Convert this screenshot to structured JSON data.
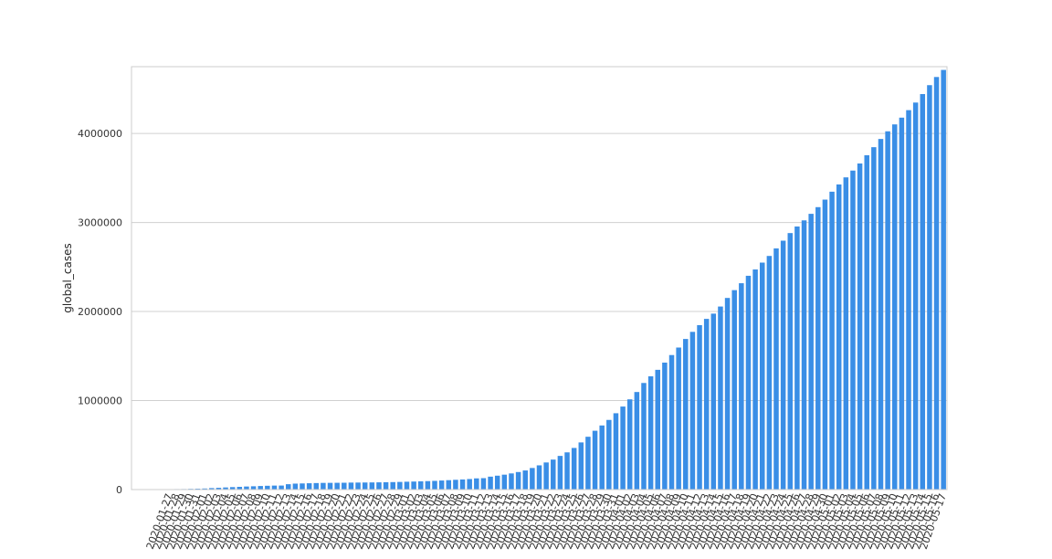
{
  "chart_data": {
    "type": "bar",
    "title": "",
    "xlabel": "",
    "ylabel": "global_cases",
    "ylim": [
      0,
      4750000
    ],
    "yticks": [
      0,
      1000000,
      2000000,
      3000000,
      4000000
    ],
    "ytick_labels": [
      "0",
      "1000000",
      "2000000",
      "3000000",
      "4000000"
    ],
    "grid": "horizontal",
    "bar_color": "#3a8ee6",
    "categories": [
      "2020-01-22",
      "2020-01-23",
      "2020-01-24",
      "2020-01-25",
      "2020-01-26",
      "2020-01-27",
      "2020-01-28",
      "2020-01-29",
      "2020-01-30",
      "2020-01-31",
      "2020-02-01",
      "2020-02-02",
      "2020-02-03",
      "2020-02-04",
      "2020-02-05",
      "2020-02-06",
      "2020-02-07",
      "2020-02-08",
      "2020-02-09",
      "2020-02-10",
      "2020-02-11",
      "2020-02-12",
      "2020-02-13",
      "2020-02-14",
      "2020-02-15",
      "2020-02-16",
      "2020-02-17",
      "2020-02-18",
      "2020-02-19",
      "2020-02-20",
      "2020-02-21",
      "2020-02-22",
      "2020-02-23",
      "2020-02-24",
      "2020-02-25",
      "2020-02-26",
      "2020-02-27",
      "2020-02-28",
      "2020-02-29",
      "2020-03-01",
      "2020-03-02",
      "2020-03-03",
      "2020-03-04",
      "2020-03-05",
      "2020-03-06",
      "2020-03-07",
      "2020-03-08",
      "2020-03-09",
      "2020-03-10",
      "2020-03-11",
      "2020-03-12",
      "2020-03-13",
      "2020-03-14",
      "2020-03-15",
      "2020-03-16",
      "2020-03-17",
      "2020-03-18",
      "2020-03-19",
      "2020-03-20",
      "2020-03-21",
      "2020-03-22",
      "2020-03-23",
      "2020-03-24",
      "2020-03-25",
      "2020-03-26",
      "2020-03-27",
      "2020-03-28",
      "2020-03-29",
      "2020-03-30",
      "2020-03-31",
      "2020-04-01",
      "2020-04-02",
      "2020-04-03",
      "2020-04-04",
      "2020-04-05",
      "2020-04-06",
      "2020-04-07",
      "2020-04-08",
      "2020-04-09",
      "2020-04-10",
      "2020-04-11",
      "2020-04-12",
      "2020-04-13",
      "2020-04-14",
      "2020-04-15",
      "2020-04-16",
      "2020-04-17",
      "2020-04-18",
      "2020-04-19",
      "2020-04-20",
      "2020-04-21",
      "2020-04-22",
      "2020-04-23",
      "2020-04-24",
      "2020-04-25",
      "2020-04-26",
      "2020-04-27",
      "2020-04-28",
      "2020-04-29",
      "2020-04-30",
      "2020-05-01",
      "2020-05-02",
      "2020-05-03",
      "2020-05-04",
      "2020-05-05",
      "2020-05-06",
      "2020-05-07",
      "2020-05-08",
      "2020-05-09",
      "2020-05-10",
      "2020-05-11",
      "2020-05-12",
      "2020-05-13",
      "2020-05-14",
      "2020-05-15",
      "2020-05-16",
      "2020-05-17"
    ],
    "visible_tick_labels": [
      "2020-01-27",
      "2020-01-28",
      "2020-01-29",
      "2020-01-30",
      "2020-01-31",
      "2020-02-01",
      "2020-02-02",
      "2020-02-03",
      "2020-02-04",
      "2020-02-05",
      "2020-02-06",
      "2020-02-07",
      "2020-02-08",
      "2020-02-09",
      "2020-02-10",
      "2020-02-11",
      "2020-02-12",
      "2020-02-13",
      "2020-02-14",
      "2020-02-15",
      "2020-02-16",
      "2020-02-17",
      "2020-02-18",
      "2020-02-19",
      "2020-02-20",
      "2020-02-21",
      "2020-02-22",
      "2020-02-23",
      "2020-02-24",
      "2020-02-25",
      "2020-02-26",
      "2020-02-27",
      "2020-02-28",
      "2020-02-29",
      "2020-03-01",
      "2020-03-02",
      "2020-03-03",
      "2020-03-04",
      "2020-03-05",
      "2020-03-06",
      "2020-03-07",
      "2020-03-08",
      "2020-03-09",
      "2020-03-10",
      "2020-03-11",
      "2020-03-12",
      "2020-03-13",
      "2020-03-14",
      "2020-03-15",
      "2020-03-16",
      "2020-03-17",
      "2020-03-18",
      "2020-03-19",
      "2020-03-20",
      "2020-03-21",
      "2020-03-22",
      "2020-03-23",
      "2020-03-24",
      "2020-03-25",
      "2020-03-26",
      "2020-03-27",
      "2020-03-28",
      "2020-03-29",
      "2020-03-30",
      "2020-03-31",
      "2020-04-01",
      "2020-04-02",
      "2020-04-03",
      "2020-04-04",
      "2020-04-05",
      "2020-04-06",
      "2020-04-07",
      "2020-04-08",
      "2020-04-09",
      "2020-04-10",
      "2020-04-11",
      "2020-04-12",
      "2020-04-13",
      "2020-04-14",
      "2020-04-15",
      "2020-04-16",
      "2020-04-17",
      "2020-04-18",
      "2020-04-19",
      "2020-04-20",
      "2020-04-21",
      "2020-04-22",
      "2020-04-23",
      "2020-04-24",
      "2020-04-25",
      "2020-04-26",
      "2020-04-27",
      "2020-04-28",
      "2020-04-29",
      "2020-04-30",
      "2020-05-01",
      "2020-05-02",
      "2020-05-03",
      "2020-05-04",
      "2020-05-05",
      "2020-05-06",
      "2020-05-07",
      "2020-05-08",
      "2020-05-09",
      "2020-05-10",
      "2020-05-11",
      "2020-05-12",
      "2020-05-13",
      "2020-05-14",
      "2020-05-15",
      "2020-05-16",
      "2020-05-17"
    ],
    "values": [
      555,
      654,
      941,
      1434,
      2118,
      2927,
      5578,
      6166,
      8234,
      9927,
      12038,
      16787,
      19881,
      23892,
      27635,
      30794,
      34391,
      37120,
      40150,
      42762,
      44802,
      45221,
      60368,
      66885,
      69030,
      71224,
      73258,
      75136,
      75639,
      76197,
      76819,
      78572,
      78958,
      79561,
      80406,
      81388,
      82746,
      84112,
      86011,
      88369,
      90306,
      92840,
      95120,
      97886,
      101801,
      105847,
      109821,
      113590,
      118620,
      125875,
      128352,
      145205,
      156101,
      167454,
      181574,
      197102,
      214821,
      242570,
      272208,
      304507,
      336953,
      378231,
      418041,
      467653,
      529591,
      593291,
      660706,
      720117,
      782365,
      857487,
      932605,
      1013466,
      1095917,
      1197405,
      1272115,
      1345101,
      1426096,
      1511104,
      1595350,
      1691719,
      1771514,
      1846680,
      1917320,
      1976191,
      2056054,
      2152437,
      2240191,
      2317758,
      2401378,
      2472259,
      2549294,
      2624074,
      2708885,
      2795729,
      2881140,
      2955033,
      3023722,
      3097229,
      3172287,
      3256846,
      3345835,
      3427343,
      3506729,
      3583055,
      3662691,
      3755341,
      3845718,
      3938064,
      4024009,
      4101699,
      4177502,
      4261747,
      4347018,
      4442163,
      4542347,
      4634068,
      4713620
    ]
  }
}
